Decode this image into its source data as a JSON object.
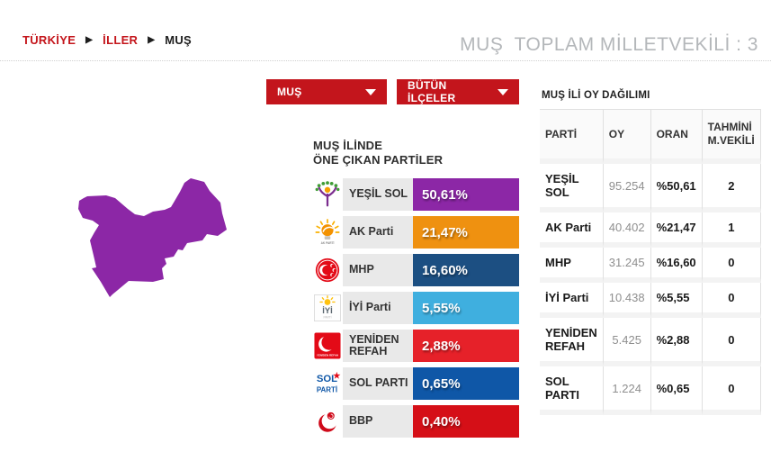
{
  "breadcrumb": {
    "separator": "▶",
    "items": [
      {
        "label": "TÜRKİYE"
      },
      {
        "label": "İLLER"
      },
      {
        "label": "MUŞ"
      }
    ]
  },
  "header": {
    "title": "MUŞ  TOPLAM MİLLETVEKİLİ : 3"
  },
  "filters": {
    "province_dropdown": {
      "value": "MUŞ"
    },
    "district_dropdown": {
      "value": "BÜTÜN İLÇELER"
    }
  },
  "map": {
    "province": "MUŞ",
    "fill_color": "#8c27a6"
  },
  "featured": {
    "title_line1": "MUŞ İLİNDE",
    "title_line2": "ÖNE ÇIKAN PARTİLER",
    "parties": [
      {
        "name": "YEŞİL SOL",
        "percent": "50,61%",
        "color": "#8c27a6",
        "icon": "yesil-sol-logo"
      },
      {
        "name": "AK Parti",
        "percent": "21,47%",
        "color": "#ef9110",
        "icon": "ak-parti-logo"
      },
      {
        "name": "MHP",
        "percent": "16,60%",
        "color": "#1c4f82",
        "icon": "mhp-logo"
      },
      {
        "name": "İYİ Parti",
        "percent": "5,55%",
        "color": "#3fafdf",
        "icon": "iyi-parti-logo"
      },
      {
        "name": "YENİDEN REFAH",
        "percent": "2,88%",
        "color": "#e62129",
        "icon": "yeniden-refah-logo"
      },
      {
        "name": "SOL PARTI",
        "percent": "0,65%",
        "color": "#0f57a7",
        "icon": "sol-parti-logo"
      },
      {
        "name": "BBP",
        "percent": "0,40%",
        "color": "#d50f17",
        "icon": "bbp-logo"
      }
    ]
  },
  "results_table": {
    "title": "MUŞ İLİ OY DAĞILIMI",
    "columns": [
      "PARTİ",
      "OY",
      "ORAN",
      "TAHMİNİ M.VEKİLİ"
    ],
    "rows": [
      {
        "party": "YEŞİL SOL",
        "votes": "95.254",
        "ratio": "%50,61",
        "seats": "2"
      },
      {
        "party": "AK Parti",
        "votes": "40.402",
        "ratio": "%21,47",
        "seats": "1"
      },
      {
        "party": "MHP",
        "votes": "31.245",
        "ratio": "%16,60",
        "seats": "0"
      },
      {
        "party": "İYİ Parti",
        "votes": "10.438",
        "ratio": "%5,55",
        "seats": "0"
      },
      {
        "party": "YENİDEN REFAH",
        "votes": "5.425",
        "ratio": "%2,88",
        "seats": "0"
      },
      {
        "party": "SOL PARTI",
        "votes": "1.224",
        "ratio": "%0,65",
        "seats": "0"
      }
    ]
  }
}
